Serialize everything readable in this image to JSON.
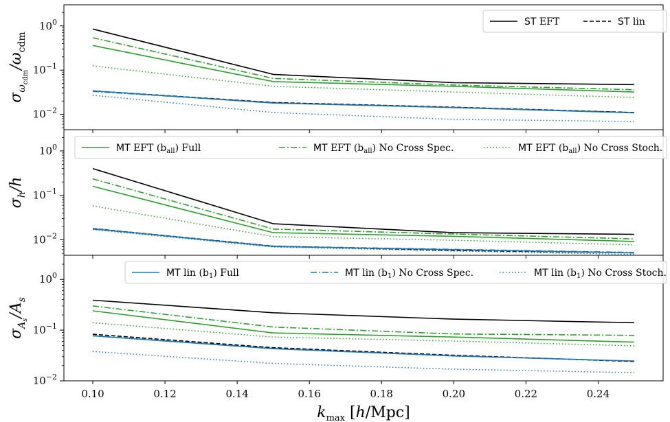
{
  "chart_data": {
    "type": "line",
    "x": [
      0.1,
      0.15,
      0.2,
      0.25
    ],
    "xlim": [
      0.092,
      0.258
    ],
    "xticks": [
      0.1,
      0.12,
      0.14,
      0.16,
      0.18,
      0.2,
      0.22,
      0.24
    ],
    "xtick_labels": [
      "0.10",
      "0.12",
      "0.14",
      "0.16",
      "0.18",
      "0.20",
      "0.22",
      "0.24"
    ],
    "xlabel": "k_max [h/Mpc]",
    "yscale": "log",
    "colors": {
      "ST": "#000000",
      "MT_EFT": "#2ca02c",
      "MT_lin": "#1f77b4"
    },
    "styles": {
      "ST_EFT": "solid",
      "ST_lin": "dashed",
      "MT_EFT_full": "solid",
      "MT_EFT_nocrossspec": "dashdot",
      "MT_EFT_nocrossstoch": "dotted",
      "MT_lin_full": "solid",
      "MT_lin_nocrossspec": "dashdot",
      "MT_lin_nocrossstoch": "dotted"
    },
    "panels": [
      {
        "ylabel": "σ_ω_cdm / ω_cdm",
        "ylim": [
          0.0045,
          3.0
        ],
        "yticks": [
          {
            "value": 1,
            "base": "10",
            "exp": "0"
          },
          {
            "value": 0.1,
            "base": "10",
            "exp": "−1"
          },
          {
            "value": 0.01,
            "base": "10",
            "exp": "−2"
          }
        ],
        "legend": {
          "position": "upper right",
          "entries": [
            {
              "series": "ST_EFT",
              "sans": "ST",
              "serif": " EFT"
            },
            {
              "series": "ST_lin",
              "sans": "ST",
              "serif": " lin"
            }
          ]
        },
        "series": {
          "ST_EFT": [
            0.85,
            0.08,
            0.052,
            0.047
          ],
          "ST_lin": [
            0.034,
            0.0185,
            0.0145,
            0.011
          ],
          "MT_EFT_full": [
            0.36,
            0.055,
            0.043,
            0.032
          ],
          "MT_EFT_nocrossspec": [
            0.54,
            0.065,
            0.046,
            0.036
          ],
          "MT_EFT_nocrossstoch": [
            0.125,
            0.043,
            0.032,
            0.024
          ],
          "MT_lin_full": [
            0.034,
            0.018,
            0.0142,
            0.0108
          ],
          "MT_lin_nocrossspec": [
            0.033,
            0.0183,
            0.0143,
            0.011
          ],
          "MT_lin_nocrossstoch": [
            0.027,
            0.011,
            0.0077,
            0.0069
          ]
        }
      },
      {
        "ylabel": "σ_h / h",
        "ylim": [
          0.0045,
          3.0
        ],
        "yticks": [
          {
            "value": 1,
            "base": "10",
            "exp": "0"
          },
          {
            "value": 0.1,
            "base": "10",
            "exp": "−1"
          },
          {
            "value": 0.01,
            "base": "10",
            "exp": "−2"
          }
        ],
        "legend": {
          "position": "upper center",
          "entries": [
            {
              "series": "MT_EFT_full",
              "sans": "MT",
              "serif": " EFT (b",
              "sub": "all",
              "after": ") Full"
            },
            {
              "series": "MT_EFT_nocrossspec",
              "sans": "MT",
              "serif": " EFT (b",
              "sub": "all",
              "after": ") No Cross Spec."
            },
            {
              "series": "MT_EFT_nocrossstoch",
              "sans": "MT",
              "serif": " EFT (b",
              "sub": "all",
              "after": ") No Cross Stoch."
            }
          ]
        },
        "series": {
          "ST_EFT": [
            0.4,
            0.023,
            0.0145,
            0.0133
          ],
          "ST_lin": [
            0.018,
            0.0072,
            0.0058,
            0.0051
          ],
          "MT_EFT_full": [
            0.16,
            0.0145,
            0.012,
            0.0092
          ],
          "MT_EFT_nocrossspec": [
            0.235,
            0.0175,
            0.0135,
            0.0105
          ],
          "MT_EFT_nocrossstoch": [
            0.058,
            0.0118,
            0.0098,
            0.0077
          ],
          "MT_lin_full": [
            0.0178,
            0.0071,
            0.006,
            0.0051
          ],
          "MT_lin_nocrossspec": [
            0.0175,
            0.0072,
            0.0061,
            0.0052
          ],
          "MT_lin_nocrossstoch": [
            0.017,
            0.0069,
            0.0056,
            0.0047
          ]
        }
      },
      {
        "ylabel": "σ_As / As",
        "ylim": [
          0.01,
          3.0
        ],
        "yticks": [
          {
            "value": 1,
            "base": "10",
            "exp": "0"
          },
          {
            "value": 0.1,
            "base": "10",
            "exp": "−1"
          },
          {
            "value": 0.01,
            "base": "10",
            "exp": "−2"
          }
        ],
        "legend": {
          "position": "upper center",
          "entries": [
            {
              "series": "MT_lin_full",
              "sans": "MT",
              "serif": " lin (b",
              "sub": "1",
              "after": ") Full"
            },
            {
              "series": "MT_lin_nocrossspec",
              "sans": "MT",
              "serif": " lin (b",
              "sub": "1",
              "after": ") No Cross Spec."
            },
            {
              "series": "MT_lin_nocrossstoch",
              "sans": "MT",
              "serif": " lin (b",
              "sub": "1",
              "after": ") No Cross Stoch."
            }
          ]
        },
        "series": {
          "ST_EFT": [
            0.39,
            0.22,
            0.165,
            0.14
          ],
          "ST_lin": [
            0.083,
            0.045,
            0.032,
            0.024
          ],
          "MT_EFT_full": [
            0.24,
            0.088,
            0.073,
            0.058
          ],
          "MT_EFT_nocrossspec": [
            0.3,
            0.115,
            0.084,
            0.079
          ],
          "MT_EFT_nocrossstoch": [
            0.14,
            0.073,
            0.061,
            0.049
          ],
          "MT_lin_full": [
            0.077,
            0.043,
            0.031,
            0.0245
          ],
          "MT_lin_nocrossspec": [
            0.078,
            0.0435,
            0.031,
            0.0245
          ],
          "MT_lin_nocrossstoch": [
            0.038,
            0.022,
            0.017,
            0.0145
          ]
        }
      }
    ]
  }
}
